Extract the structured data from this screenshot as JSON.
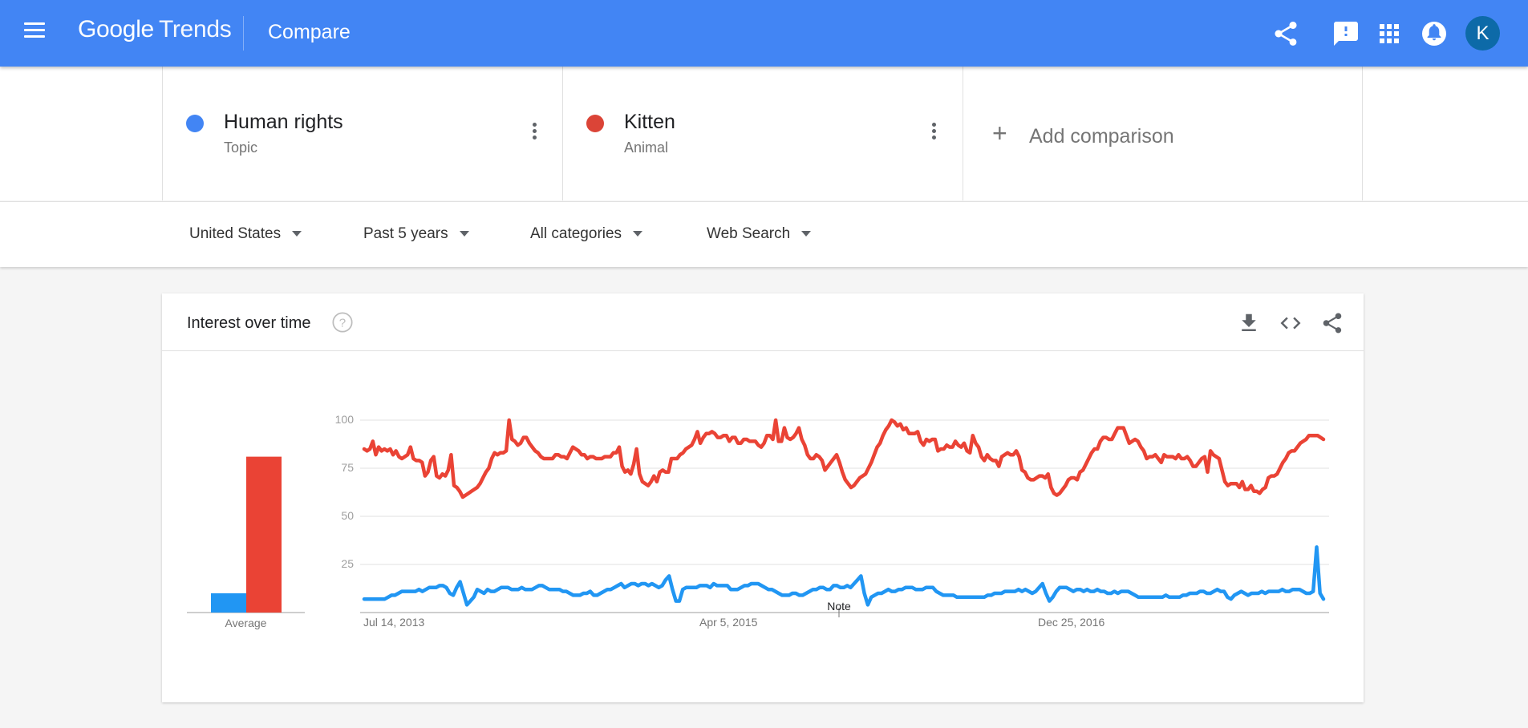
{
  "header": {
    "logo_google": "Google",
    "logo_trends": "Trends",
    "title": "Compare",
    "avatar_letter": "K",
    "icons": [
      "menu-icon",
      "share-icon",
      "feedback-icon",
      "apps-icon",
      "notifications-icon"
    ]
  },
  "terms": [
    {
      "name": "Human rights",
      "type": "Topic",
      "color": "#4285f4"
    },
    {
      "name": "Kitten",
      "type": "Animal",
      "color": "#db4437"
    }
  ],
  "add_comparison": {
    "label": "Add comparison"
  },
  "filters": {
    "region": "United States",
    "time": "Past 5 years",
    "category": "All categories",
    "search_type": "Web Search"
  },
  "card": {
    "title": "Interest over time",
    "icons": [
      "help-icon",
      "download-icon",
      "embed-icon",
      "share-icon"
    ]
  },
  "chart_data": {
    "type": "line",
    "ylim": [
      0,
      100
    ],
    "yticks": [
      25,
      50,
      75,
      100
    ],
    "x_tick_labels": [
      "Jul 14, 2013",
      "Apr 5, 2015",
      "Dec 25, 2016"
    ],
    "annotation": "Note",
    "average_label": "Average",
    "averages": [
      10,
      81
    ],
    "series": [
      {
        "name": "Kitten",
        "color": "#ea4335",
        "values": [
          85,
          84,
          85,
          89,
          82,
          86,
          84,
          85,
          84,
          85,
          82,
          84,
          81,
          80,
          81,
          82,
          86,
          80,
          79,
          79,
          78,
          71,
          73,
          79,
          81,
          71,
          70,
          72,
          71,
          74,
          82,
          66,
          65,
          63,
          60,
          61,
          62,
          63,
          64,
          65,
          67,
          70,
          73,
          75,
          80,
          83,
          82,
          83,
          83,
          84,
          100,
          90,
          89,
          87,
          88,
          91,
          91,
          88,
          86,
          84,
          83,
          81,
          80,
          80,
          80,
          80,
          82,
          82,
          81,
          81,
          80,
          83,
          86,
          85,
          84,
          82,
          82,
          80,
          81,
          81,
          80,
          80,
          80,
          81,
          81,
          81,
          83,
          83,
          86,
          76,
          73,
          74,
          72,
          77,
          85,
          72,
          68,
          67,
          66,
          68,
          71,
          68,
          73,
          74,
          73,
          73,
          80,
          80,
          80,
          82,
          83,
          85,
          86,
          87,
          90,
          94,
          88,
          91,
          93,
          93,
          94,
          93,
          91,
          91,
          92,
          92,
          89,
          91,
          91,
          88,
          88,
          90,
          90,
          89,
          89,
          89,
          87,
          86,
          88,
          92,
          92,
          90,
          100,
          89,
          89,
          96,
          91,
          90,
          91,
          93,
          96,
          90,
          87,
          82,
          80,
          80,
          82,
          81,
          79,
          74,
          76,
          78,
          80,
          82,
          78,
          73,
          69,
          67,
          65,
          66,
          68,
          70,
          71,
          72,
          75,
          78,
          82,
          86,
          88,
          92,
          95,
          97,
          100,
          99,
          97,
          98,
          95,
          96,
          93,
          93,
          93,
          94,
          89,
          87,
          90,
          89,
          90,
          90,
          84,
          85,
          85,
          87,
          86,
          86,
          89,
          87,
          86,
          88,
          84,
          83,
          92,
          88,
          86,
          81,
          79,
          82,
          80,
          79,
          79,
          76,
          81,
          82,
          83,
          82,
          82,
          84,
          81,
          74,
          73,
          70,
          69,
          69,
          70,
          71,
          71,
          70,
          72,
          65,
          62,
          61,
          62,
          64,
          66,
          69,
          70,
          70,
          69,
          73,
          74,
          77,
          80,
          83,
          85,
          85,
          89,
          91,
          91,
          90,
          90,
          93,
          96,
          96,
          96,
          92,
          88,
          89,
          90,
          89,
          86,
          84,
          80,
          81,
          81,
          82,
          80,
          78,
          82,
          81,
          81,
          81,
          80,
          82,
          80,
          80,
          81,
          79,
          76,
          76,
          78,
          80,
          81,
          73,
          84,
          82,
          81,
          80,
          74,
          68,
          66,
          67,
          67,
          67,
          65,
          68,
          64,
          64,
          66,
          63,
          63,
          62,
          64,
          65,
          70,
          71,
          71,
          72,
          75,
          78,
          80,
          83,
          84,
          84,
          86,
          88,
          89,
          90,
          92,
          92,
          92,
          92,
          91,
          90
        ]
      },
      {
        "name": "Human rights",
        "color": "#2196f3",
        "values": [
          7,
          7,
          7,
          7,
          7,
          7,
          7,
          8,
          9,
          9,
          10,
          11,
          11,
          11,
          11,
          11,
          12,
          11,
          12,
          13,
          13,
          13,
          14,
          14,
          13,
          10,
          9,
          13,
          16,
          10,
          4,
          6,
          8,
          12,
          11,
          10,
          12,
          11,
          11,
          12,
          13,
          13,
          13,
          12,
          12,
          12,
          13,
          12,
          12,
          12,
          13,
          14,
          14,
          13,
          12,
          12,
          12,
          12,
          11,
          11,
          10,
          9,
          9,
          9,
          10,
          10,
          11,
          9,
          9,
          10,
          11,
          12,
          12,
          13,
          14,
          15,
          13,
          14,
          15,
          15,
          14,
          15,
          15,
          14,
          15,
          14,
          13,
          14,
          17,
          19,
          12,
          6,
          6,
          12,
          13,
          13,
          13,
          13,
          14,
          14,
          14,
          13,
          15,
          14,
          14,
          14,
          14,
          12,
          12,
          12,
          13,
          14,
          14,
          15,
          15,
          15,
          14,
          13,
          12,
          12,
          11,
          10,
          9,
          9,
          9,
          10,
          10,
          9,
          9,
          10,
          11,
          12,
          12,
          13,
          13,
          12,
          12,
          14,
          14,
          13,
          13,
          14,
          13,
          15,
          17,
          19,
          10,
          4,
          8,
          9,
          10,
          10,
          11,
          12,
          11,
          11,
          12,
          12,
          13,
          13,
          13,
          12,
          12,
          12,
          13,
          13,
          13,
          11,
          10,
          9,
          9,
          9,
          9,
          8,
          8,
          8,
          8,
          8,
          8,
          8,
          8,
          8,
          9,
          9,
          10,
          10,
          10,
          11,
          11,
          11,
          11,
          12,
          11,
          12,
          11,
          10,
          11,
          13,
          15,
          10,
          6,
          8,
          11,
          13,
          13,
          13,
          12,
          11,
          12,
          12,
          11,
          12,
          11,
          11,
          12,
          11,
          11,
          10,
          10,
          11,
          10,
          11,
          11,
          11,
          10,
          9,
          8,
          8,
          8,
          8,
          8,
          8,
          8,
          8,
          9,
          8,
          8,
          8,
          8,
          9,
          9,
          10,
          10,
          10,
          11,
          11,
          10,
          10,
          11,
          12,
          11,
          11,
          8,
          7,
          9,
          10,
          11,
          10,
          9,
          10,
          10,
          10,
          11,
          10,
          11,
          11,
          11,
          11,
          12,
          11,
          11,
          12,
          12,
          12,
          11,
          10,
          10,
          11,
          34,
          10,
          7
        ]
      }
    ]
  }
}
